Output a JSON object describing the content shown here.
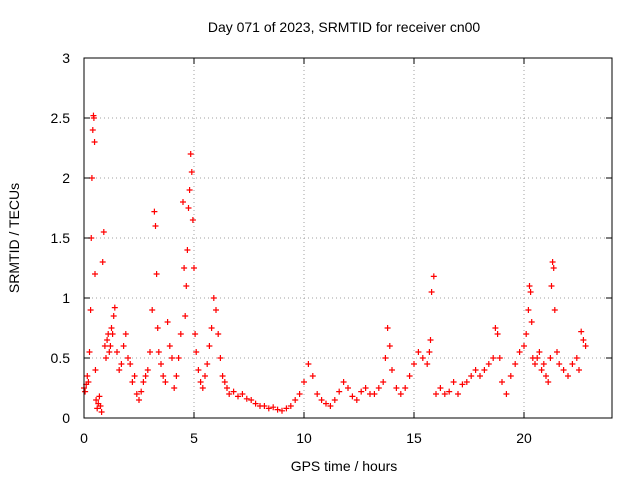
{
  "chart_data": {
    "type": "scatter",
    "title": "Day 071 of 2023, SRMTID for receiver cn00",
    "xlabel": "GPS time / hours",
    "ylabel": "SRMTID / TECUs",
    "xlim": [
      0,
      24
    ],
    "ylim": [
      0,
      3
    ],
    "x_ticks": [
      0,
      5,
      10,
      15,
      20
    ],
    "x_tick_labels": [
      "0",
      "5",
      "10",
      "15",
      "20"
    ],
    "y_ticks": [
      0,
      0.5,
      1,
      1.5,
      2,
      2.5,
      3
    ],
    "y_tick_labels": [
      "0",
      "0.5",
      "1",
      "1.5",
      "2",
      "2.5",
      "3"
    ],
    "grid": true,
    "marker": "+",
    "marker_color": "#ff0000",
    "series": [
      {
        "name": "SRMTID",
        "x": [
          0.0,
          0.05,
          0.1,
          0.15,
          0.2,
          0.25,
          0.3,
          0.33,
          0.36,
          0.4,
          0.43,
          0.45,
          0.48,
          0.5,
          0.52,
          0.55,
          0.6,
          0.65,
          0.7,
          0.75,
          0.8,
          0.85,
          0.9,
          0.95,
          1.0,
          1.05,
          1.1,
          1.15,
          1.2,
          1.25,
          1.3,
          1.35,
          1.4,
          1.5,
          1.6,
          1.7,
          1.8,
          1.9,
          2.0,
          2.1,
          2.2,
          2.3,
          2.4,
          2.5,
          2.6,
          2.7,
          2.8,
          2.9,
          3.0,
          3.1,
          3.2,
          3.25,
          3.3,
          3.35,
          3.4,
          3.5,
          3.6,
          3.7,
          3.8,
          3.9,
          4.0,
          4.1,
          4.2,
          4.3,
          4.4,
          4.5,
          4.55,
          4.6,
          4.65,
          4.7,
          4.75,
          4.8,
          4.85,
          4.9,
          4.95,
          5.0,
          5.05,
          5.1,
          5.2,
          5.3,
          5.4,
          5.5,
          5.6,
          5.7,
          5.8,
          5.9,
          6.0,
          6.1,
          6.2,
          6.3,
          6.4,
          6.5,
          6.6,
          6.8,
          7.0,
          7.2,
          7.4,
          7.6,
          7.8,
          8.0,
          8.2,
          8.4,
          8.6,
          8.8,
          9.0,
          9.2,
          9.4,
          9.6,
          9.8,
          10.0,
          10.2,
          10.4,
          10.6,
          10.8,
          11.0,
          11.2,
          11.4,
          11.6,
          11.8,
          12.0,
          12.2,
          12.4,
          12.6,
          12.8,
          13.0,
          13.2,
          13.4,
          13.6,
          13.7,
          13.8,
          13.9,
          14.0,
          14.2,
          14.4,
          14.6,
          14.8,
          15.0,
          15.2,
          15.4,
          15.6,
          15.7,
          15.75,
          15.8,
          15.9,
          16.0,
          16.2,
          16.4,
          16.6,
          16.8,
          17.0,
          17.2,
          17.4,
          17.6,
          17.8,
          18.0,
          18.2,
          18.4,
          18.6,
          18.7,
          18.8,
          18.9,
          19.0,
          19.2,
          19.4,
          19.6,
          19.8,
          20.0,
          20.1,
          20.2,
          20.25,
          20.3,
          20.35,
          20.4,
          20.5,
          20.6,
          20.7,
          20.8,
          20.9,
          21.0,
          21.1,
          21.2,
          21.25,
          21.3,
          21.35,
          21.4,
          21.5,
          21.6,
          21.8,
          22.0,
          22.2,
          22.4,
          22.5,
          22.6,
          22.7,
          22.8
        ],
        "y": [
          0.25,
          0.22,
          0.28,
          0.35,
          0.3,
          0.55,
          0.9,
          1.5,
          2.0,
          2.4,
          2.52,
          2.5,
          2.3,
          1.2,
          0.4,
          0.15,
          0.08,
          0.12,
          0.18,
          0.1,
          0.05,
          1.3,
          1.55,
          0.6,
          0.5,
          0.65,
          0.7,
          0.55,
          0.6,
          0.75,
          0.7,
          0.85,
          0.92,
          0.55,
          0.4,
          0.45,
          0.6,
          0.7,
          0.5,
          0.45,
          0.3,
          0.35,
          0.2,
          0.15,
          0.22,
          0.3,
          0.35,
          0.4,
          0.55,
          0.9,
          1.72,
          1.6,
          1.2,
          0.75,
          0.55,
          0.45,
          0.35,
          0.3,
          0.8,
          0.6,
          0.5,
          0.25,
          0.35,
          0.5,
          0.7,
          1.8,
          1.25,
          0.85,
          1.1,
          1.4,
          1.75,
          1.9,
          2.2,
          2.05,
          1.65,
          1.25,
          0.7,
          0.55,
          0.4,
          0.3,
          0.25,
          0.35,
          0.45,
          0.6,
          0.75,
          1.0,
          0.9,
          0.7,
          0.5,
          0.35,
          0.3,
          0.25,
          0.2,
          0.22,
          0.18,
          0.2,
          0.16,
          0.15,
          0.12,
          0.1,
          0.1,
          0.08,
          0.09,
          0.07,
          0.06,
          0.08,
          0.1,
          0.15,
          0.2,
          0.3,
          0.45,
          0.35,
          0.2,
          0.15,
          0.12,
          0.1,
          0.15,
          0.22,
          0.3,
          0.25,
          0.18,
          0.15,
          0.22,
          0.25,
          0.2,
          0.2,
          0.25,
          0.3,
          0.5,
          0.75,
          0.6,
          0.4,
          0.25,
          0.2,
          0.25,
          0.35,
          0.45,
          0.55,
          0.5,
          0.45,
          0.55,
          0.65,
          1.05,
          1.18,
          0.2,
          0.25,
          0.2,
          0.22,
          0.3,
          0.2,
          0.28,
          0.3,
          0.35,
          0.4,
          0.35,
          0.4,
          0.45,
          0.5,
          0.75,
          0.7,
          0.5,
          0.3,
          0.2,
          0.35,
          0.45,
          0.55,
          0.6,
          0.7,
          0.9,
          1.1,
          1.05,
          0.8,
          0.5,
          0.45,
          0.5,
          0.55,
          0.4,
          0.45,
          0.35,
          0.3,
          0.5,
          1.1,
          1.3,
          1.25,
          0.9,
          0.55,
          0.45,
          0.4,
          0.35,
          0.45,
          0.5,
          0.4,
          0.72,
          0.65,
          0.6
        ]
      }
    ]
  }
}
